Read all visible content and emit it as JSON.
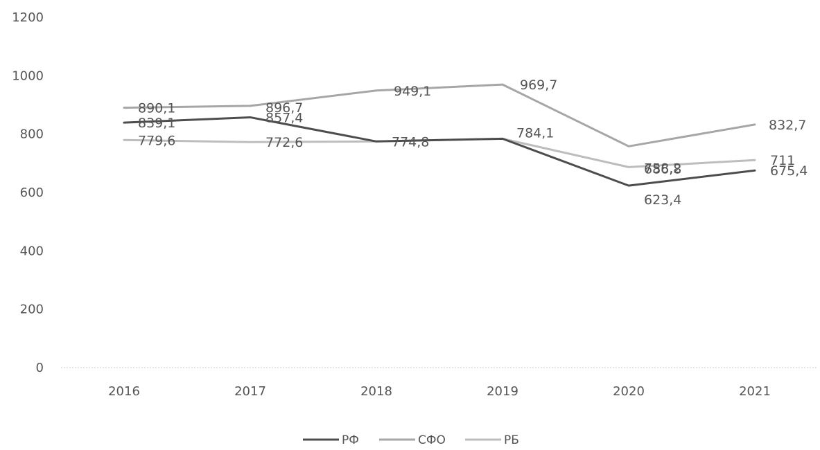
{
  "chart_data": {
    "type": "line",
    "categories": [
      "2016",
      "2017",
      "2018",
      "2019",
      "2020",
      "2021"
    ],
    "ylim": [
      0,
      1200
    ],
    "yticks": [
      0,
      200,
      400,
      600,
      800,
      1000,
      1200
    ],
    "grid": false,
    "legend_position": "bottom",
    "series": [
      {
        "name": "РФ",
        "color": "#4d4d4d",
        "values": [
          839.1,
          857.4,
          774.8,
          784.1,
          623.4,
          675.4
        ],
        "labels": [
          "839,1",
          "857,4",
          "774,8",
          "",
          "623,4",
          "675,4"
        ]
      },
      {
        "name": "СФО",
        "color": "#a6a6a6",
        "values": [
          890.1,
          896.7,
          949.1,
          969.7,
          758.2,
          832.7
        ],
        "labels": [
          "890,1",
          "896,7",
          "949,1",
          "969,7",
          "758,2",
          "832,7"
        ]
      },
      {
        "name": "РБ",
        "color": "#bdbdbd",
        "values": [
          779.6,
          772.6,
          774.8,
          784.1,
          686.8,
          711
        ],
        "labels": [
          "779,6",
          "772,6",
          "",
          "784,1",
          "686,8",
          "711"
        ]
      }
    ]
  }
}
